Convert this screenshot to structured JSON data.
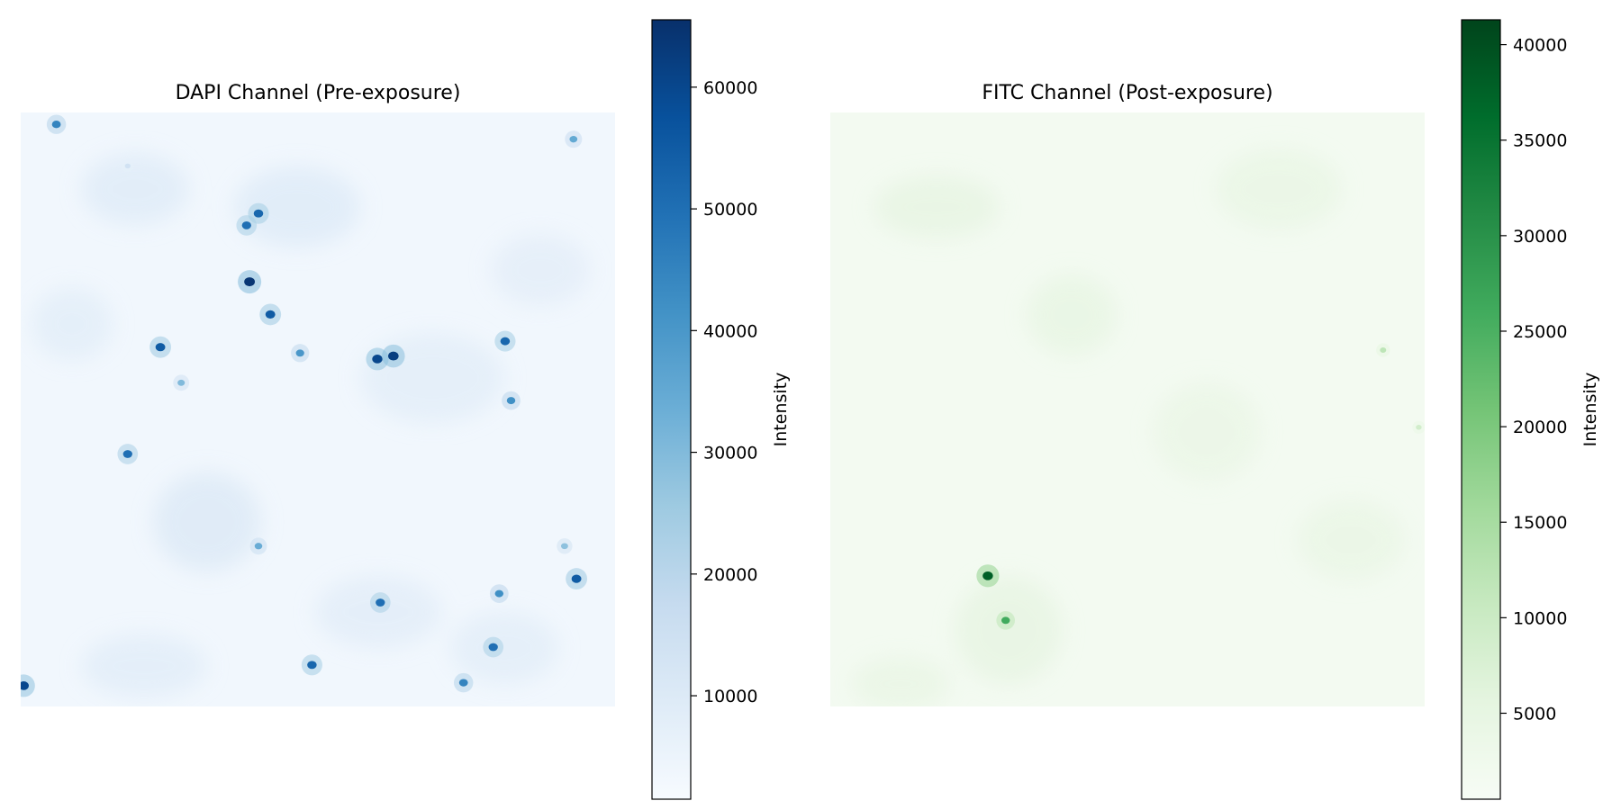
{
  "colors": {
    "blues_low": "#f7fbff",
    "blues_high": "#08306b",
    "greens_low": "#f7fcf5",
    "greens_high": "#00441b"
  },
  "chart_data": [
    {
      "type": "heatmap",
      "title": "DAPI Channel (Pre-exposure)",
      "colormap": "Blues",
      "colorbar": {
        "label": "Intensity",
        "range": [
          1500,
          65535
        ],
        "ticks": [
          10000,
          20000,
          30000,
          40000,
          50000,
          60000
        ],
        "tick_labels": [
          "10000",
          "20000",
          "30000",
          "40000",
          "50000",
          "60000"
        ]
      },
      "background_level": 3500,
      "spots": [
        {
          "x": 0.06,
          "y": 0.02,
          "v": 45000
        },
        {
          "x": 0.93,
          "y": 0.045,
          "v": 35000
        },
        {
          "x": 0.18,
          "y": 0.09,
          "v": 14000
        },
        {
          "x": 0.4,
          "y": 0.17,
          "v": 52000
        },
        {
          "x": 0.38,
          "y": 0.19,
          "v": 50000
        },
        {
          "x": 0.385,
          "y": 0.285,
          "v": 64000
        },
        {
          "x": 0.42,
          "y": 0.34,
          "v": 55000
        },
        {
          "x": 0.235,
          "y": 0.395,
          "v": 55000
        },
        {
          "x": 0.47,
          "y": 0.405,
          "v": 40000
        },
        {
          "x": 0.6,
          "y": 0.415,
          "v": 60000
        },
        {
          "x": 0.627,
          "y": 0.41,
          "v": 62000
        },
        {
          "x": 0.815,
          "y": 0.385,
          "v": 52000
        },
        {
          "x": 0.27,
          "y": 0.455,
          "v": 30000
        },
        {
          "x": 0.825,
          "y": 0.485,
          "v": 42000
        },
        {
          "x": 0.18,
          "y": 0.575,
          "v": 50000
        },
        {
          "x": 0.4,
          "y": 0.73,
          "v": 34000
        },
        {
          "x": 0.915,
          "y": 0.73,
          "v": 28000
        },
        {
          "x": 0.935,
          "y": 0.785,
          "v": 55000
        },
        {
          "x": 0.605,
          "y": 0.825,
          "v": 50000
        },
        {
          "x": 0.805,
          "y": 0.81,
          "v": 42000
        },
        {
          "x": 0.795,
          "y": 0.9,
          "v": 50000
        },
        {
          "x": 0.49,
          "y": 0.93,
          "v": 52000
        },
        {
          "x": 0.745,
          "y": 0.96,
          "v": 45000
        },
        {
          "x": 0.005,
          "y": 0.965,
          "v": 60000
        }
      ]
    },
    {
      "type": "heatmap",
      "title": "FITC Channel (Post-exposure)",
      "colormap": "Greens",
      "colorbar": {
        "label": "Intensity",
        "range": [
          500,
          41300
        ],
        "ticks": [
          5000,
          10000,
          15000,
          20000,
          25000,
          30000,
          35000,
          40000
        ],
        "tick_labels": [
          "5000",
          "10000",
          "15000",
          "20000",
          "25000",
          "30000",
          "35000",
          "40000"
        ]
      },
      "background_level": 2000,
      "spots": [
        {
          "x": 0.265,
          "y": 0.78,
          "v": 38000
        },
        {
          "x": 0.295,
          "y": 0.855,
          "v": 26000
        },
        {
          "x": 0.93,
          "y": 0.4,
          "v": 12000
        },
        {
          "x": 0.99,
          "y": 0.53,
          "v": 9000
        }
      ]
    }
  ]
}
